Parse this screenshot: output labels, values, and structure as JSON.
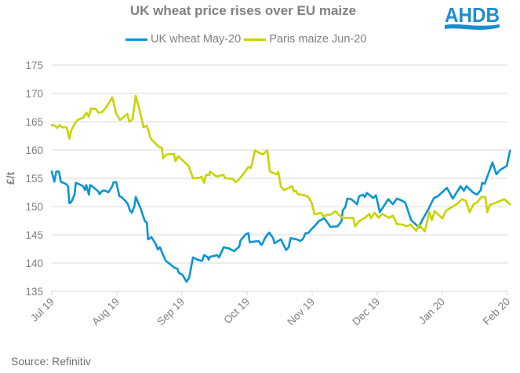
{
  "header": {
    "title": "UK wheat price rises over EU maize",
    "logo_text": "AHDB"
  },
  "legend": [
    {
      "label": "UK wheat May-20",
      "color": "#0A94D6"
    },
    {
      "label": "Paris maize Jun-20",
      "color": "#C8D400"
    }
  ],
  "footer": {
    "source": "Source: Refinitiv"
  },
  "colors": {
    "text": "#808080",
    "grid": "#D9D9D9",
    "logo": "#1C8ECF"
  },
  "chart_data": {
    "type": "line",
    "title": "UK wheat price rises over EU maize",
    "xlabel": "",
    "ylabel": "£/t",
    "x_unit": "months since Jul 2019",
    "ylim": [
      135,
      175
    ],
    "yticks": [
      135,
      140,
      145,
      150,
      155,
      160,
      165,
      170,
      175
    ],
    "xlim": [
      0,
      7
    ],
    "xticks": [
      {
        "value": 0,
        "label": "Jul 19"
      },
      {
        "value": 1,
        "label": "Aug 19"
      },
      {
        "value": 2,
        "label": "Sep 19"
      },
      {
        "value": 3,
        "label": "Oct 19"
      },
      {
        "value": 4,
        "label": "Nov 19"
      },
      {
        "value": 5,
        "label": "Dec 19"
      },
      {
        "value": 6,
        "label": "Jan 20"
      },
      {
        "value": 7,
        "label": "Feb 20"
      }
    ],
    "grid": true,
    "legend_position": "top",
    "series": [
      {
        "name": "UK wheat May-20",
        "color": "#0A94D6",
        "points": [
          [
            0.0,
            156.2
          ],
          [
            0.04,
            154.4
          ],
          [
            0.07,
            156.2
          ],
          [
            0.11,
            156.2
          ],
          [
            0.14,
            154.4
          ],
          [
            0.23,
            153.9
          ],
          [
            0.25,
            153.5
          ],
          [
            0.27,
            150.6
          ],
          [
            0.3,
            150.8
          ],
          [
            0.35,
            152.1
          ],
          [
            0.37,
            154.2
          ],
          [
            0.43,
            153.9
          ],
          [
            0.48,
            153.6
          ],
          [
            0.51,
            152.9
          ],
          [
            0.53,
            153.8
          ],
          [
            0.57,
            152.1
          ],
          [
            0.59,
            153.8
          ],
          [
            0.65,
            153.3
          ],
          [
            0.72,
            152.6
          ],
          [
            0.73,
            152.2
          ],
          [
            0.78,
            152.8
          ],
          [
            0.82,
            152.8
          ],
          [
            0.87,
            152.5
          ],
          [
            0.93,
            153.6
          ],
          [
            0.95,
            154.3
          ],
          [
            0.99,
            154.3
          ],
          [
            1.04,
            151.8
          ],
          [
            1.07,
            151.7
          ],
          [
            1.13,
            151.0
          ],
          [
            1.17,
            150.4
          ],
          [
            1.2,
            149.3
          ],
          [
            1.23,
            148.9
          ],
          [
            1.27,
            150.1
          ],
          [
            1.29,
            151.7
          ],
          [
            1.37,
            149.5
          ],
          [
            1.43,
            147.4
          ],
          [
            1.46,
            147.2
          ],
          [
            1.48,
            144.2
          ],
          [
            1.53,
            144.6
          ],
          [
            1.59,
            143.5
          ],
          [
            1.63,
            142.4
          ],
          [
            1.66,
            142.8
          ],
          [
            1.7,
            141.7
          ],
          [
            1.75,
            140.4
          ],
          [
            1.83,
            139.7
          ],
          [
            1.88,
            139.2
          ],
          [
            1.93,
            139.0
          ],
          [
            1.95,
            138.3
          ],
          [
            2.01,
            137.9
          ],
          [
            2.07,
            136.7
          ],
          [
            2.11,
            137.4
          ],
          [
            2.17,
            141.0
          ],
          [
            2.22,
            140.7
          ],
          [
            2.29,
            140.4
          ],
          [
            2.31,
            140.4
          ],
          [
            2.34,
            141.4
          ],
          [
            2.39,
            141.1
          ],
          [
            2.41,
            140.6
          ],
          [
            2.43,
            141.1
          ],
          [
            2.54,
            141.4
          ],
          [
            2.57,
            141.0
          ],
          [
            2.64,
            142.8
          ],
          [
            2.72,
            142.6
          ],
          [
            2.8,
            142.1
          ],
          [
            2.88,
            142.9
          ],
          [
            2.9,
            144.0
          ],
          [
            2.98,
            145.1
          ],
          [
            3.02,
            145.3
          ],
          [
            3.04,
            143.7
          ],
          [
            3.18,
            143.9
          ],
          [
            3.22,
            143.2
          ],
          [
            3.24,
            143.5
          ],
          [
            3.27,
            144.3
          ],
          [
            3.31,
            145.0
          ],
          [
            3.34,
            145.4
          ],
          [
            3.4,
            144.4
          ],
          [
            3.42,
            143.5
          ],
          [
            3.49,
            144.0
          ],
          [
            3.52,
            144.2
          ],
          [
            3.6,
            142.3
          ],
          [
            3.64,
            142.8
          ],
          [
            3.67,
            144.4
          ],
          [
            3.76,
            144.2
          ],
          [
            3.82,
            143.9
          ],
          [
            3.86,
            144.3
          ],
          [
            3.9,
            145.3
          ],
          [
            3.94,
            145.3
          ],
          [
            3.99,
            146.0
          ],
          [
            4.05,
            146.7
          ],
          [
            4.11,
            147.5
          ],
          [
            4.14,
            147.6
          ],
          [
            4.18,
            148.0
          ],
          [
            4.22,
            147.4
          ],
          [
            4.28,
            146.4
          ],
          [
            4.39,
            146.5
          ],
          [
            4.45,
            147.4
          ],
          [
            4.47,
            149.3
          ],
          [
            4.51,
            149.9
          ],
          [
            4.54,
            151.4
          ],
          [
            4.6,
            151.3
          ],
          [
            4.65,
            150.8
          ],
          [
            4.69,
            150.4
          ],
          [
            4.72,
            151.8
          ],
          [
            4.78,
            152.1
          ],
          [
            4.81,
            151.7
          ],
          [
            4.84,
            152.4
          ],
          [
            4.94,
            151.5
          ],
          [
            4.98,
            152.0
          ],
          [
            5.04,
            149.0
          ],
          [
            5.17,
            151.3
          ],
          [
            5.24,
            150.4
          ],
          [
            5.3,
            151.4
          ],
          [
            5.37,
            151.1
          ],
          [
            5.43,
            150.7
          ],
          [
            5.52,
            147.6
          ],
          [
            5.64,
            146.3
          ],
          [
            5.69,
            147.6
          ],
          [
            5.78,
            149.4
          ],
          [
            5.87,
            151.5
          ],
          [
            5.93,
            151.8
          ],
          [
            6.07,
            153.3
          ],
          [
            6.16,
            151.4
          ],
          [
            6.28,
            153.6
          ],
          [
            6.33,
            152.8
          ],
          [
            6.37,
            153.6
          ],
          [
            6.47,
            152.5
          ],
          [
            6.53,
            152.1
          ],
          [
            6.59,
            152.9
          ],
          [
            6.61,
            154.2
          ],
          [
            6.65,
            154.0
          ],
          [
            6.77,
            157.8
          ],
          [
            6.83,
            155.7
          ],
          [
            6.88,
            156.4
          ],
          [
            6.99,
            157.2
          ],
          [
            7.04,
            159.9
          ]
        ]
      },
      {
        "name": "Paris maize Jun-20",
        "color": "#C8D400",
        "points": [
          [
            0.0,
            164.4
          ],
          [
            0.05,
            164.3
          ],
          [
            0.08,
            163.9
          ],
          [
            0.12,
            164.4
          ],
          [
            0.16,
            164.0
          ],
          [
            0.23,
            164.0
          ],
          [
            0.27,
            162.0
          ],
          [
            0.3,
            163.5
          ],
          [
            0.36,
            164.8
          ],
          [
            0.41,
            165.4
          ],
          [
            0.48,
            165.7
          ],
          [
            0.53,
            166.6
          ],
          [
            0.57,
            165.9
          ],
          [
            0.6,
            167.3
          ],
          [
            0.67,
            167.3
          ],
          [
            0.72,
            166.6
          ],
          [
            0.77,
            166.7
          ],
          [
            0.82,
            167.3
          ],
          [
            0.93,
            169.3
          ],
          [
            0.99,
            166.4
          ],
          [
            1.05,
            165.3
          ],
          [
            1.16,
            166.4
          ],
          [
            1.19,
            165.0
          ],
          [
            1.24,
            165.4
          ],
          [
            1.29,
            169.6
          ],
          [
            1.37,
            166.1
          ],
          [
            1.41,
            164.0
          ],
          [
            1.46,
            164.3
          ],
          [
            1.52,
            162.0
          ],
          [
            1.64,
            160.6
          ],
          [
            1.69,
            160.4
          ],
          [
            1.71,
            158.5
          ],
          [
            1.76,
            159.2
          ],
          [
            1.88,
            159.3
          ],
          [
            1.9,
            158.0
          ],
          [
            1.94,
            158.9
          ],
          [
            1.98,
            158.5
          ],
          [
            2.1,
            157.2
          ],
          [
            2.17,
            155.0
          ],
          [
            2.28,
            155.1
          ],
          [
            2.3,
            155.3
          ],
          [
            2.34,
            154.2
          ],
          [
            2.37,
            155.6
          ],
          [
            2.42,
            155.6
          ],
          [
            2.43,
            156.2
          ],
          [
            2.53,
            155.3
          ],
          [
            2.64,
            155.6
          ],
          [
            2.66,
            155.0
          ],
          [
            2.78,
            154.9
          ],
          [
            2.82,
            154.3
          ],
          [
            2.86,
            154.6
          ],
          [
            2.94,
            155.7
          ],
          [
            3.02,
            157.0
          ],
          [
            3.06,
            156.8
          ],
          [
            3.12,
            159.9
          ],
          [
            3.24,
            159.2
          ],
          [
            3.31,
            159.9
          ],
          [
            3.35,
            156.2
          ],
          [
            3.45,
            155.7
          ],
          [
            3.48,
            156.1
          ],
          [
            3.52,
            153.5
          ],
          [
            3.57,
            152.9
          ],
          [
            3.69,
            153.6
          ],
          [
            3.72,
            152.6
          ],
          [
            3.75,
            152.8
          ],
          [
            3.78,
            152.2
          ],
          [
            3.88,
            152.0
          ],
          [
            3.94,
            151.7
          ],
          [
            3.99,
            150.7
          ],
          [
            4.04,
            148.6
          ],
          [
            4.14,
            148.9
          ],
          [
            4.18,
            148.2
          ],
          [
            4.23,
            148.6
          ],
          [
            4.27,
            148.5
          ],
          [
            4.36,
            149.2
          ],
          [
            4.41,
            148.5
          ],
          [
            4.48,
            147.9
          ],
          [
            4.51,
            148.0
          ],
          [
            4.63,
            148.0
          ],
          [
            4.66,
            146.5
          ],
          [
            4.72,
            147.4
          ],
          [
            4.81,
            148.0
          ],
          [
            4.88,
            148.7
          ],
          [
            4.9,
            147.9
          ],
          [
            4.96,
            148.9
          ],
          [
            5.02,
            148.0
          ],
          [
            5.08,
            148.7
          ],
          [
            5.18,
            148.0
          ],
          [
            5.24,
            148.4
          ],
          [
            5.3,
            146.9
          ],
          [
            5.39,
            146.8
          ],
          [
            5.45,
            146.5
          ],
          [
            5.51,
            146.8
          ],
          [
            5.6,
            145.7
          ],
          [
            5.64,
            146.8
          ],
          [
            5.7,
            146.0
          ],
          [
            5.73,
            145.6
          ],
          [
            5.8,
            149.0
          ],
          [
            5.84,
            147.6
          ],
          [
            5.88,
            149.2
          ],
          [
            6.0,
            147.9
          ],
          [
            6.06,
            149.3
          ],
          [
            6.22,
            150.4
          ],
          [
            6.3,
            151.3
          ],
          [
            6.36,
            151.0
          ],
          [
            6.42,
            149.0
          ],
          [
            6.48,
            150.4
          ],
          [
            6.54,
            150.8
          ],
          [
            6.6,
            151.7
          ],
          [
            6.66,
            151.7
          ],
          [
            6.69,
            149.0
          ],
          [
            6.73,
            150.3
          ],
          [
            6.77,
            150.4
          ],
          [
            6.95,
            151.3
          ],
          [
            7.04,
            150.4
          ]
        ]
      }
    ]
  }
}
